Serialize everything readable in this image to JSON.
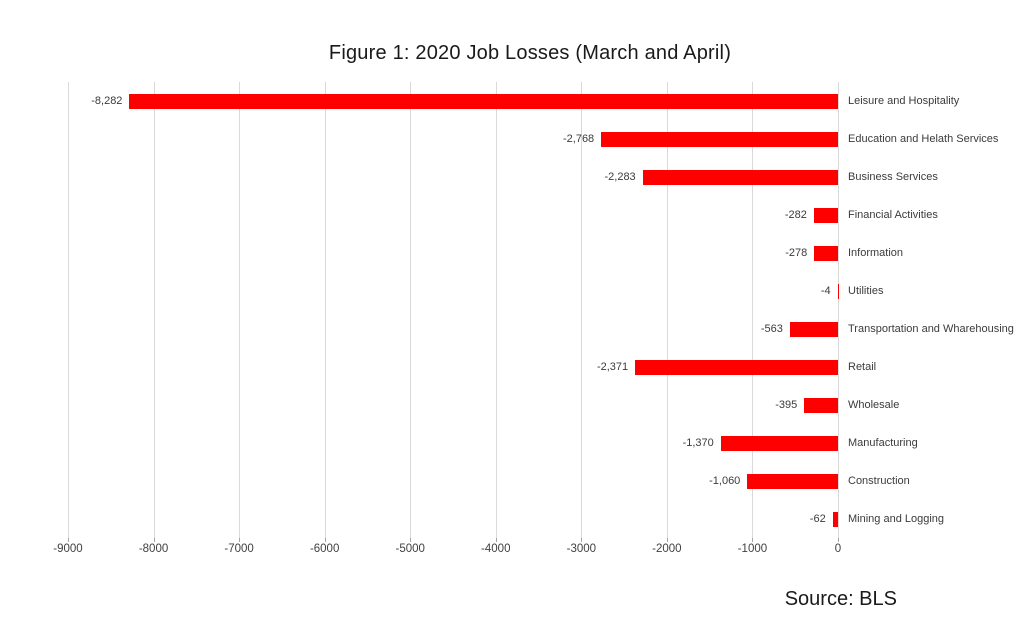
{
  "title": "Figure 1: 2020 Job Losses (March and April)",
  "source": "Source: BLS",
  "chart_data": {
    "type": "bar",
    "orientation": "horizontal",
    "title": "Figure 1: 2020 Job Losses (March and April)",
    "categories": [
      "Leisure and Hospitality",
      "Education and Helath Services",
      "Business Services",
      "Financial Activities",
      "Information",
      "Utilities",
      "Transportation and Wharehousing",
      "Retail",
      "Wholesale",
      "Manufacturing",
      "Construction",
      "Mining and Logging"
    ],
    "values": [
      -8282,
      -2768,
      -2283,
      -282,
      -278,
      -4,
      -563,
      -2371,
      -395,
      -1370,
      -1060,
      -62
    ],
    "value_labels": [
      "-8,282",
      "-2,768",
      "-2,283",
      "-282",
      "-278",
      "-4",
      "-563",
      "-2,371",
      "-395",
      "-1,370",
      "-1,060",
      "-62"
    ],
    "xlim": [
      -9000,
      0
    ],
    "xticks": [
      -9000,
      -8000,
      -7000,
      -6000,
      -5000,
      -4000,
      -3000,
      -2000,
      -1000,
      0
    ],
    "xtick_labels": [
      "-9000",
      "-8000",
      "-7000",
      "-6000",
      "-5000",
      "-4000",
      "-3000",
      "-2000",
      "-1000",
      "0"
    ],
    "grid": true,
    "legend": false,
    "bar_color": "#fe0000",
    "gridline_color": "#d9d9d9",
    "annotation": "Source: BLS"
  }
}
